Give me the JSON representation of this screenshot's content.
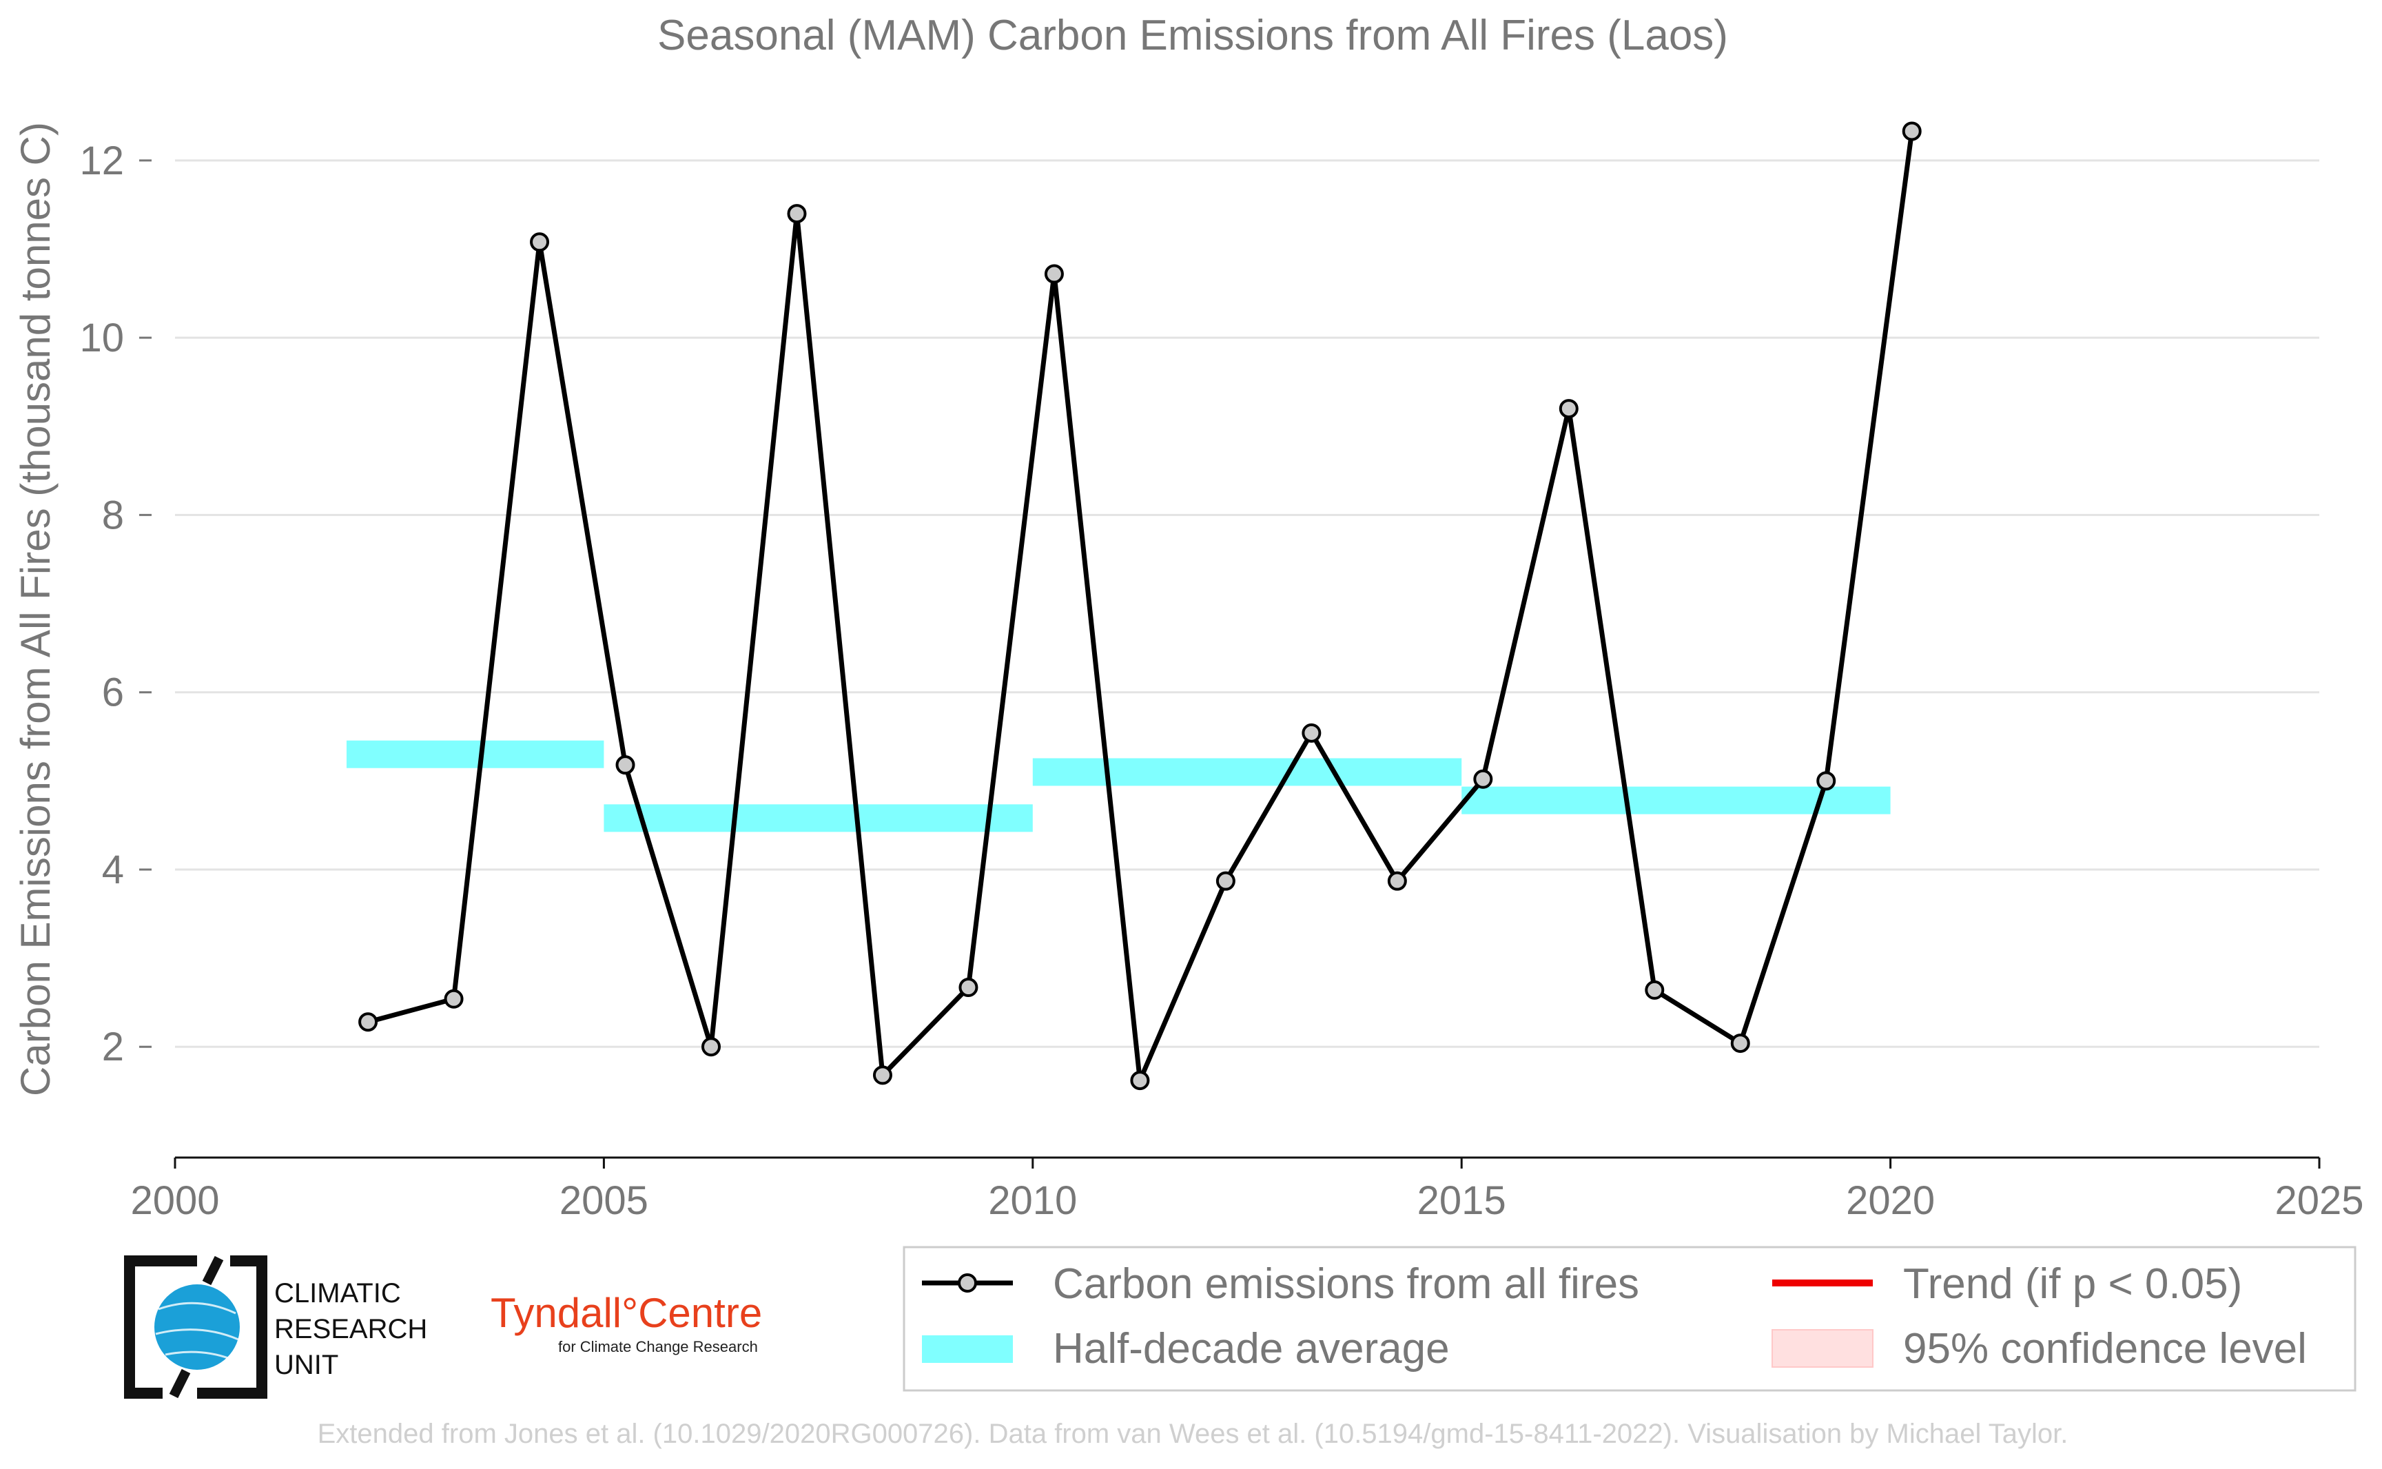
{
  "chart_data": {
    "type": "line",
    "title": "Seasonal (MAM) Carbon Emissions from All Fires (Laos)",
    "xlabel": "",
    "ylabel": "Carbon Emissions from All Fires (thousand tonnes C)",
    "xlim": [
      2000,
      2025
    ],
    "ylim": [
      0.75,
      12.8
    ],
    "xticks": [
      "2000",
      "2005",
      "2010",
      "2015",
      "2020",
      "2025"
    ],
    "yticks": [
      "2",
      "4",
      "6",
      "8",
      "10",
      "12"
    ],
    "grid": "horizontal",
    "legend_position": "bottom-right",
    "series": [
      {
        "name": "Carbon emissions from all fires",
        "color": "#000000",
        "marker_fill": "#cccccc",
        "x": [
          2002.25,
          2003.25,
          2004.25,
          2005.25,
          2006.25,
          2007.25,
          2008.25,
          2009.25,
          2010.25,
          2011.25,
          2012.25,
          2013.25,
          2014.25,
          2015.25,
          2016.25,
          2017.25,
          2018.25,
          2019.25,
          2020.25
        ],
        "values": [
          2.28,
          2.54,
          11.08,
          5.18,
          2.0,
          11.4,
          1.68,
          2.67,
          10.72,
          1.62,
          3.87,
          5.54,
          3.87,
          5.02,
          9.2,
          2.64,
          2.04,
          5.0,
          12.33
        ]
      }
    ],
    "half_decade_average": {
      "name": "Half-decade average",
      "color": "#80ffff",
      "segments": [
        {
          "x0": 2002,
          "x1": 2005,
          "value": 5.3
        },
        {
          "x0": 2005,
          "x1": 2010,
          "value": 4.58
        },
        {
          "x0": 2010,
          "x1": 2015,
          "value": 5.1
        },
        {
          "x0": 2015,
          "x1": 2020,
          "value": 4.78
        }
      ]
    },
    "legend": [
      {
        "label": "Carbon emissions from all fires",
        "kind": "line-marker",
        "color": "#000000"
      },
      {
        "label": "Half-decade average",
        "kind": "band",
        "color": "#80ffff"
      },
      {
        "label": "Trend (if p < 0.05)",
        "kind": "line",
        "color": "#ee0000"
      },
      {
        "label": "95% confidence level",
        "kind": "patch",
        "color": "#ffe0e0"
      }
    ]
  },
  "logos": {
    "cru": [
      "CLIMATIC",
      "RESEARCH",
      "UNIT"
    ],
    "tyndall_main": "Tyndall°Centre",
    "tyndall_sub": "for Climate Change Research"
  },
  "credit": "Extended from Jones et al. (10.1029/2020RG000726). Data from van Wees et al. (10.5194/gmd-15-8411-2022). Visualisation by Michael Taylor."
}
